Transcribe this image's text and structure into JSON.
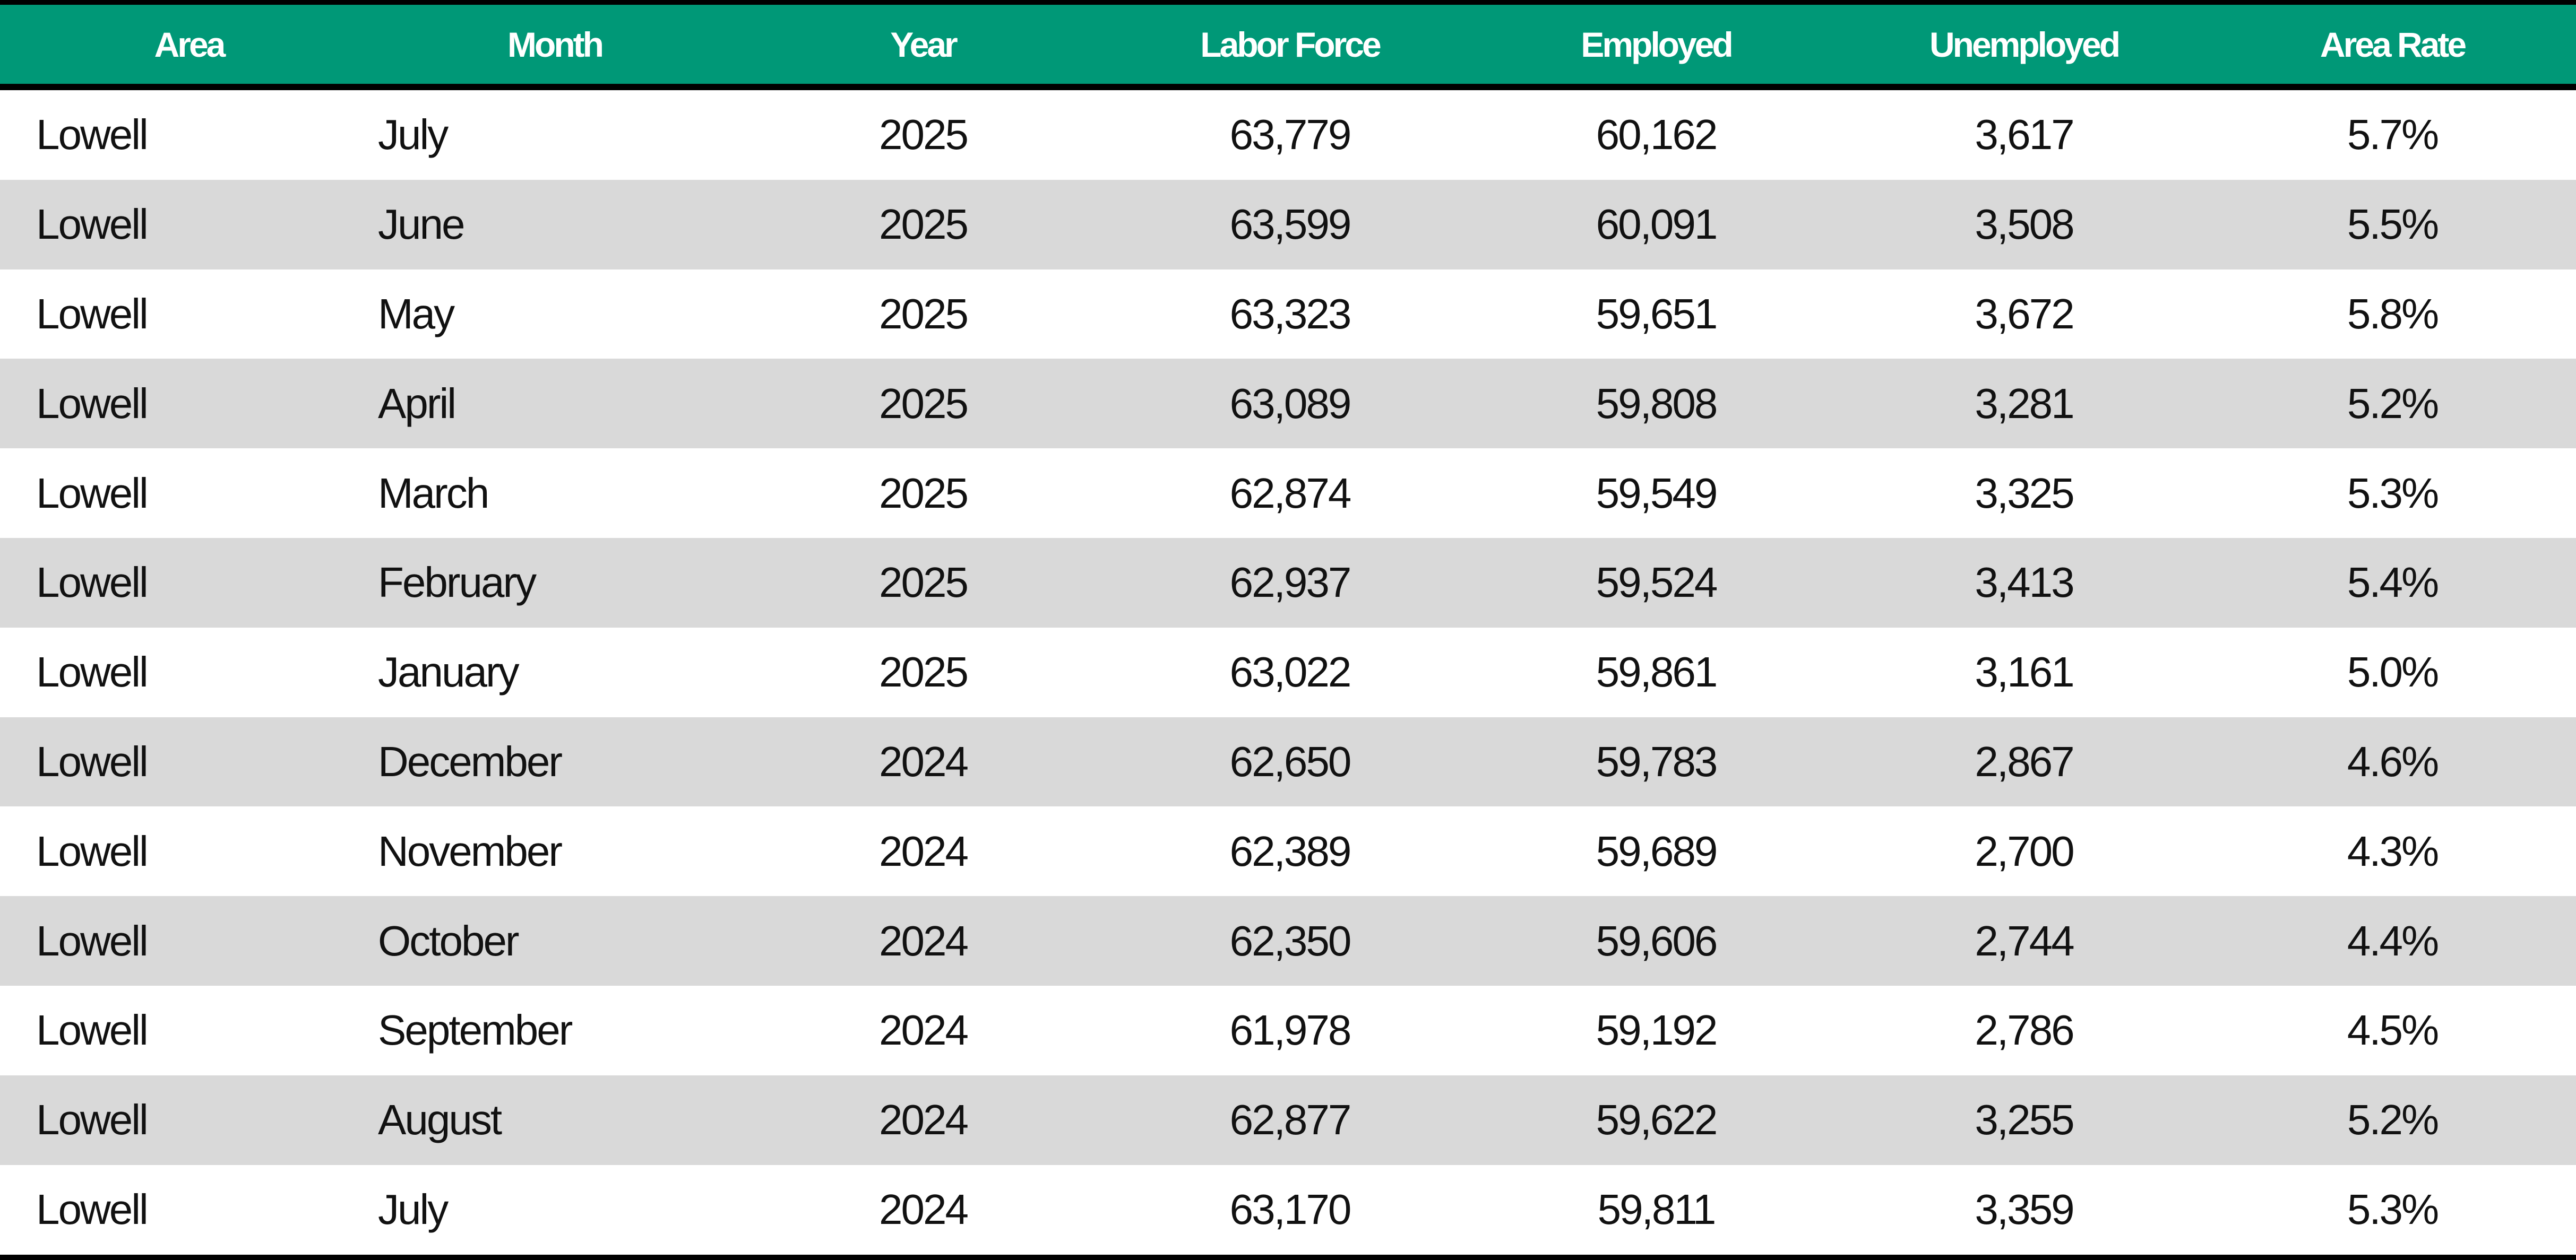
{
  "table": {
    "columns": [
      "Area",
      "Month",
      "Year",
      "Labor Force",
      "Employed",
      "Unemployed",
      "Area Rate"
    ],
    "rows": [
      [
        "Lowell",
        "July",
        "2025",
        "63,779",
        "60,162",
        "3,617",
        "5.7%"
      ],
      [
        "Lowell",
        "June",
        "2025",
        "63,599",
        "60,091",
        "3,508",
        "5.5%"
      ],
      [
        "Lowell",
        "May",
        "2025",
        "63,323",
        "59,651",
        "3,672",
        "5.8%"
      ],
      [
        "Lowell",
        "April",
        "2025",
        "63,089",
        "59,808",
        "3,281",
        "5.2%"
      ],
      [
        "Lowell",
        "March",
        "2025",
        "62,874",
        "59,549",
        "3,325",
        "5.3%"
      ],
      [
        "Lowell",
        "February",
        "2025",
        "62,937",
        "59,524",
        "3,413",
        "5.4%"
      ],
      [
        "Lowell",
        "January",
        "2025",
        "63,022",
        "59,861",
        "3,161",
        "5.0%"
      ],
      [
        "Lowell",
        "December",
        "2024",
        "62,650",
        "59,783",
        "2,867",
        "4.6%"
      ],
      [
        "Lowell",
        "November",
        "2024",
        "62,389",
        "59,689",
        "2,700",
        "4.3%"
      ],
      [
        "Lowell",
        "October",
        "2024",
        "62,350",
        "59,606",
        "2,744",
        "4.4%"
      ],
      [
        "Lowell",
        "September",
        "2024",
        "61,978",
        "59,192",
        "2,786",
        "4.5%"
      ],
      [
        "Lowell",
        "August",
        "2024",
        "62,877",
        "59,622",
        "3,255",
        "5.2%"
      ],
      [
        "Lowell",
        "July",
        "2024",
        "63,170",
        "59,811",
        "3,359",
        "5.3%"
      ]
    ]
  }
}
